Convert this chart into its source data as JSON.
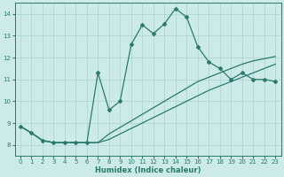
{
  "xlabel": "Humidex (Indice chaleur)",
  "bg_color": "#cceae8",
  "grid_color": "#aad4d0",
  "line_color": "#2a7a6e",
  "xlim": [
    -0.5,
    23.5
  ],
  "ylim": [
    7.5,
    14.5
  ],
  "xticks": [
    0,
    1,
    2,
    3,
    4,
    5,
    6,
    7,
    8,
    9,
    10,
    11,
    12,
    13,
    14,
    15,
    16,
    17,
    18,
    19,
    20,
    21,
    22,
    23
  ],
  "yticks": [
    8,
    9,
    10,
    11,
    12,
    13,
    14
  ],
  "line1_x": [
    0,
    1,
    2,
    3,
    4,
    5,
    6,
    7,
    8,
    9,
    10,
    11,
    12,
    13,
    14,
    15,
    16,
    17,
    18,
    19,
    20,
    21,
    22,
    23
  ],
  "line1_y": [
    8.85,
    8.55,
    8.2,
    8.1,
    8.1,
    8.1,
    8.1,
    8.1,
    8.25,
    8.5,
    8.75,
    9.0,
    9.25,
    9.5,
    9.75,
    10.0,
    10.25,
    10.5,
    10.7,
    10.9,
    11.1,
    11.3,
    11.5,
    11.7
  ],
  "line2_x": [
    0,
    1,
    2,
    3,
    4,
    5,
    6,
    7,
    8,
    9,
    10,
    11,
    12,
    13,
    14,
    15,
    16,
    17,
    18,
    19,
    20,
    21,
    22,
    23
  ],
  "line2_y": [
    8.85,
    8.55,
    8.2,
    8.1,
    8.1,
    8.1,
    8.1,
    8.1,
    8.5,
    8.8,
    9.1,
    9.4,
    9.7,
    10.0,
    10.3,
    10.6,
    10.9,
    11.1,
    11.3,
    11.5,
    11.7,
    11.85,
    11.95,
    12.05
  ],
  "line3_x": [
    0,
    1,
    2,
    3,
    4,
    5,
    6,
    7,
    8,
    9,
    10,
    11,
    12,
    13,
    14,
    15,
    16,
    17,
    18,
    19,
    20,
    21,
    22,
    23
  ],
  "line3_y": [
    8.85,
    8.55,
    8.2,
    8.1,
    8.1,
    8.1,
    8.1,
    11.3,
    9.6,
    10.0,
    12.6,
    13.5,
    13.1,
    13.55,
    14.25,
    13.85,
    12.5,
    11.8,
    11.5,
    11.0,
    11.3,
    11.0,
    11.0,
    10.9
  ]
}
